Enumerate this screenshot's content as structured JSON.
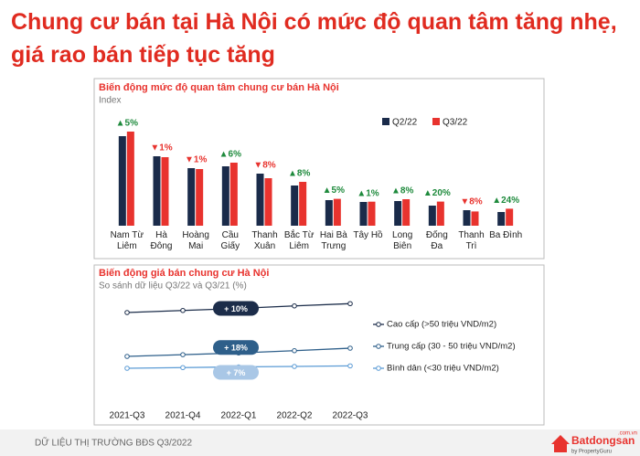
{
  "header": {
    "title": "Chung cư bán tại Hà Nội có mức độ quan tâm tăng nhẹ,\ngiá rao bán tiếp tục tăng"
  },
  "chart_data": [
    {
      "type": "bar",
      "title": "Biến động mức độ quan tâm chung cư bán Hà Nội",
      "subtitle": "Index",
      "categories": [
        "Nam Từ\nLiêm",
        "Hà\nĐông",
        "Hoàng\nMai",
        "Cầu\nGiấy",
        "Thanh\nXuân",
        "Bắc Từ\nLiêm",
        "Hai Bà\nTrưng",
        "Tây Hồ",
        "Long\nBiên",
        "Đống\nĐa",
        "Thanh\nTrì",
        "Ba Đình"
      ],
      "series": [
        {
          "name": "Q2/22",
          "color": "#1a2b4a",
          "values": [
            98,
            76,
            63,
            65,
            57,
            44,
            28,
            26,
            27,
            22,
            17,
            15
          ]
        },
        {
          "name": "Q3/22",
          "color": "#e8332e",
          "values": [
            103,
            75,
            62,
            69,
            52,
            48,
            29.4,
            26.3,
            29,
            26.4,
            15.6,
            18.6
          ]
        }
      ],
      "changes": [
        5,
        -1,
        -1,
        6,
        -8,
        8,
        5,
        1,
        8,
        20,
        -8,
        24
      ],
      "change_labels": [
        "▲5%",
        "▼1%",
        "▼1%",
        "▲6%",
        "▼8%",
        "▲8%",
        "▲5%",
        "▲1%",
        "▲8%",
        "▲20%",
        "▼8%",
        "▲24%"
      ],
      "ylim": [
        0,
        110
      ]
    },
    {
      "type": "line",
      "title": "Biến động giá bán chung cư Hà Nội",
      "subtitle": "So sánh dữ liệu Q3/22 và Q3/21 (%)",
      "categories": [
        "2021-Q3",
        "2021-Q4",
        "2022-Q1",
        "2022-Q2",
        "2022-Q3"
      ],
      "series": [
        {
          "name": "Cao cấp (>50 triệu VND/m2)",
          "color": "#1c2d4a",
          "values": [
            78.4,
            80.2,
            82,
            84.2,
            86.2
          ],
          "change": 10,
          "change_label": "+ 10%"
        },
        {
          "name": "Trung cấp (30 - 50 triệu VND/m2)",
          "color": "#2e5f8a",
          "values": [
            40,
            41.5,
            43,
            45,
            47.2
          ],
          "change": 18,
          "change_label": "+ 18%"
        },
        {
          "name": "Bình dân (<30 triệu VND/m2)",
          "color": "#5b9bd5",
          "values": [
            29.6,
            30.2,
            30.8,
            31.2,
            31.7
          ],
          "change": 7,
          "change_label": "+ 7%"
        }
      ],
      "ylim": [
        0,
        100
      ]
    }
  ],
  "footer": {
    "text": "DỮ LIỆU THỊ TRƯỜNG BĐS Q3/2022",
    "logo": "Batdongsan",
    "domain": ".com.vn",
    "tagline": "by PropertyGuru"
  }
}
